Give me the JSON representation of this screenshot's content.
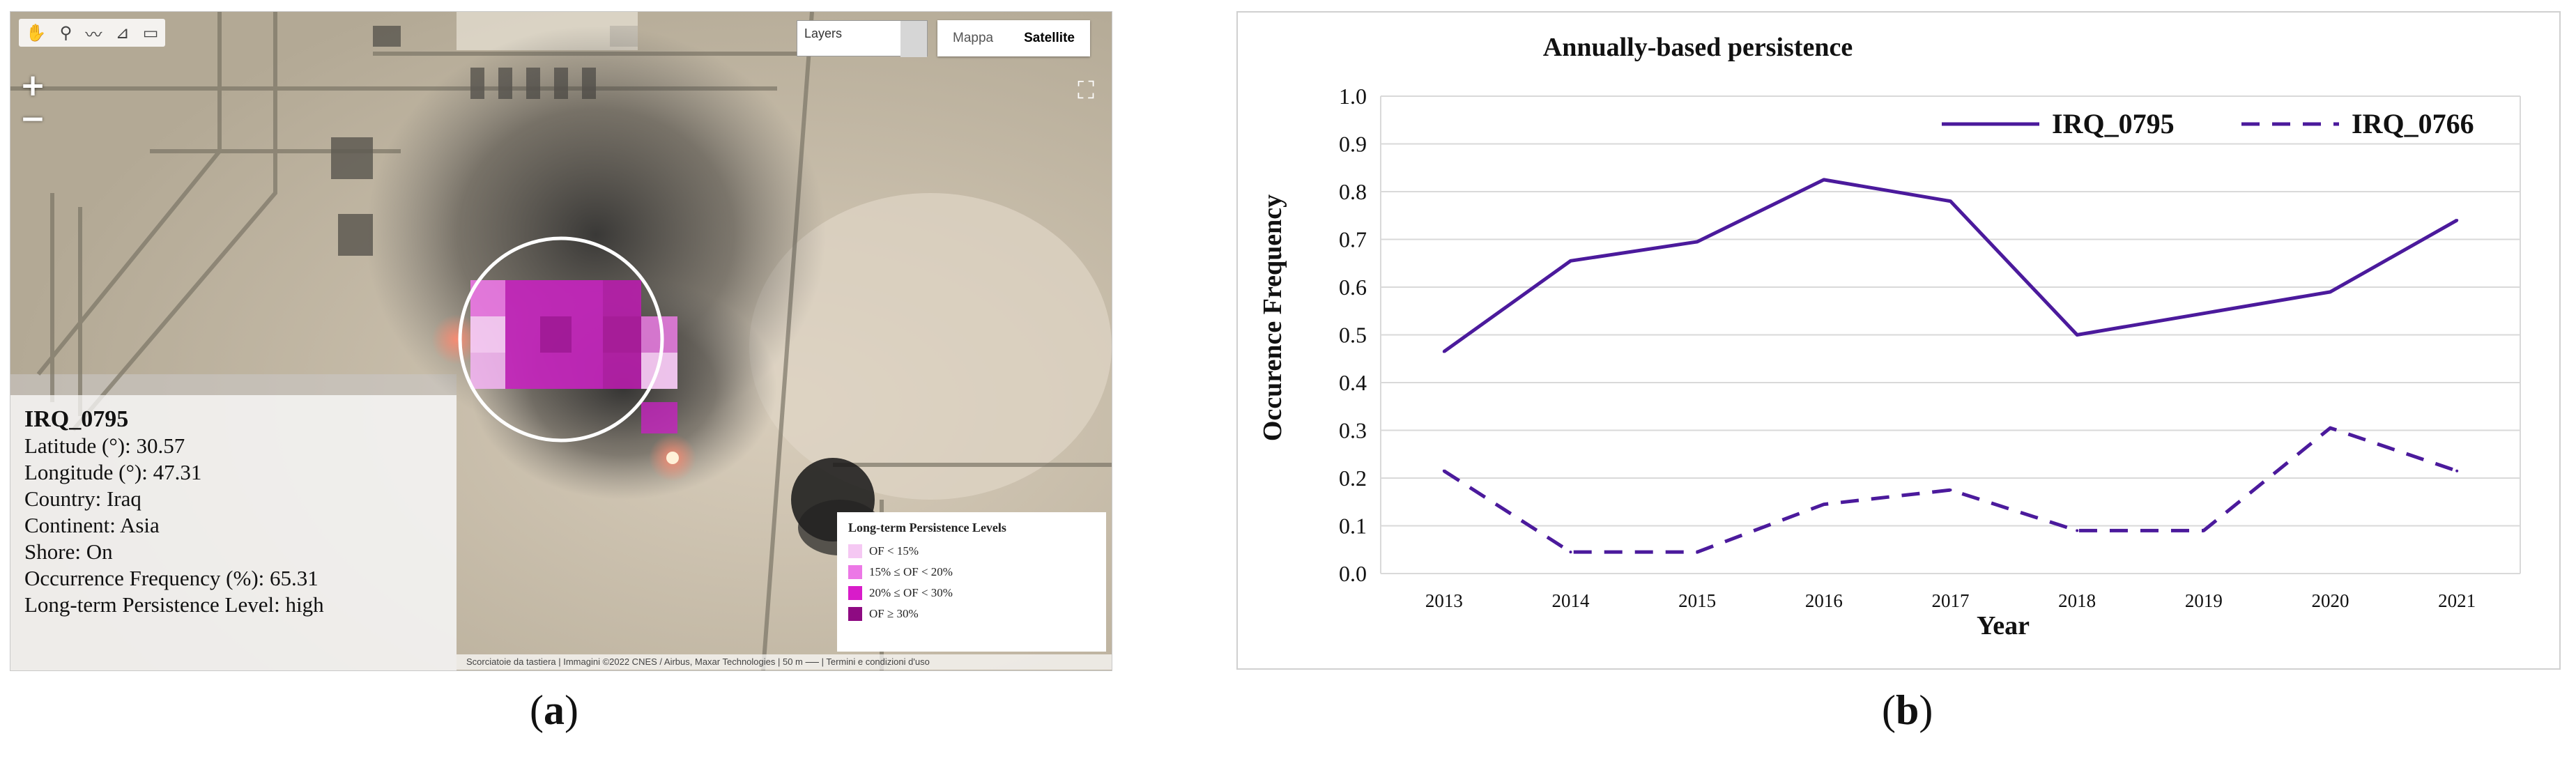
{
  "map": {
    "tools": [
      "✋",
      "⚲",
      "〰",
      "⊿",
      "▭"
    ],
    "zoom_in": "+",
    "zoom_out": "−",
    "layers_label": "Layers",
    "map_type_options": [
      "Mappa",
      "Satellite"
    ],
    "map_type_selected": "Satellite",
    "fullscreen_icon": "⛶",
    "info": {
      "site_id": "IRQ_0795",
      "latitude_label": "Latitude (°): ",
      "latitude": "30.57",
      "longitude_label": "Longitude (°): ",
      "longitude": "47.31",
      "country_label": "Country: ",
      "country": "Iraq",
      "continent_label": "Continent: ",
      "continent": "Asia",
      "shore_label": "Shore: ",
      "shore": "On",
      "of_label": "Occurrence Frequency (%): ",
      "of": "65.31",
      "level_label": "Long-term Persistence Level: ",
      "level": "high"
    },
    "legend": {
      "title": "Long-term Persistence Levels",
      "items": [
        {
          "label": "OF < 15%",
          "color": "#f5c8f3"
        },
        {
          "label": "15% ≤ OF < 20%",
          "color": "#ec78e6"
        },
        {
          "label": "20% ≤ OF < 30%",
          "color": "#d81cc9"
        },
        {
          "label": "OF ≥ 30%",
          "color": "#8e0a82"
        }
      ]
    },
    "attribution": "Scorciatoie da tastiera  |  Immagini ©2022 CNES / Airbus, Maxar Technologies  |  50 m ⎯⎯⎯  |  Termini e condizioni d'uso"
  },
  "captions": {
    "a": "a",
    "b": "b"
  },
  "chart_data": {
    "type": "line",
    "title": "Annually-based persistence",
    "xlabel": "Year",
    "ylabel": "Occurence Frequency",
    "categories": [
      "2013",
      "2014",
      "2015",
      "2016",
      "2017",
      "2018",
      "2019",
      "2020",
      "2021"
    ],
    "ylim": [
      0,
      1.0
    ],
    "yticks": [
      "0.0",
      "0.1",
      "0.2",
      "0.3",
      "0.4",
      "0.5",
      "0.6",
      "0.7",
      "0.8",
      "0.9",
      "1.0"
    ],
    "grid": true,
    "legend_position": "top",
    "color": "#4b1a9c",
    "series": [
      {
        "name": "IRQ_0795",
        "style": "solid",
        "values": [
          0.465,
          0.655,
          0.695,
          0.825,
          0.78,
          0.5,
          0.545,
          0.59,
          0.74
        ]
      },
      {
        "name": "IRQ_0766",
        "style": "dashed",
        "values": [
          0.215,
          0.045,
          0.045,
          0.145,
          0.175,
          0.09,
          0.09,
          0.305,
          0.215
        ]
      }
    ]
  }
}
